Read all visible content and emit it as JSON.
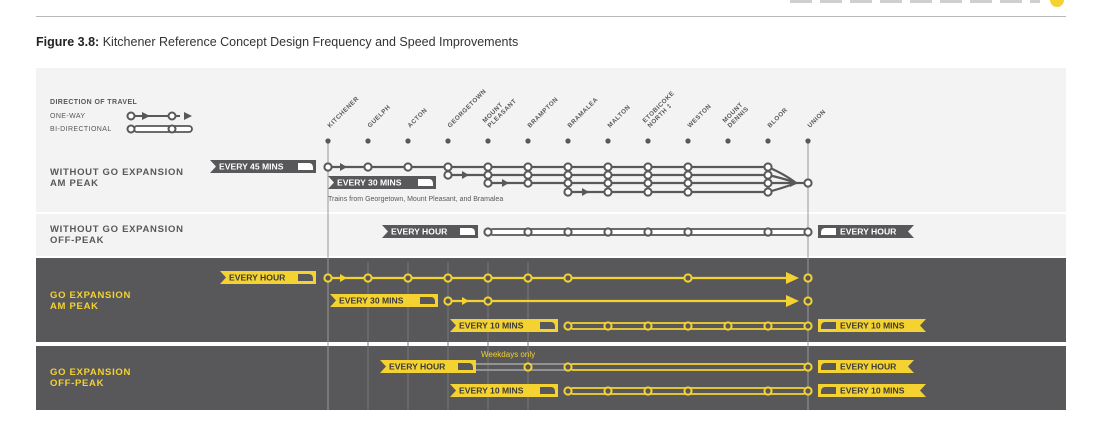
{
  "figure": {
    "label": "Figure 3.8:",
    "caption": "Kitchener Reference Concept Design Frequency and Speed Improvements"
  },
  "legend": {
    "title": "DIRECTION OF TRAVEL",
    "one_way": "ONE-WAY",
    "bi_directional": "BI-DIRECTIONAL"
  },
  "stations": [
    {
      "line1": "KITCHENER"
    },
    {
      "line1": "GUELPH"
    },
    {
      "line1": "ACTON"
    },
    {
      "line1": "GEORGETOWN"
    },
    {
      "line1": "MOUNT",
      "line2": "PLEASANT"
    },
    {
      "line1": "BRAMPTON"
    },
    {
      "line1": "BRAMALEA"
    },
    {
      "line1": "MALTON"
    },
    {
      "line1": "ETOBICOKE",
      "line2": "NORTH ‡"
    },
    {
      "line1": "WESTON"
    },
    {
      "line1": "MOUNT",
      "line2": "DENNIS"
    },
    {
      "line1": "BLOOR"
    },
    {
      "line1": "UNION"
    }
  ],
  "rows": {
    "without_am": {
      "line1": "WITHOUT GO EXPANSION",
      "line2": "AM PEAK"
    },
    "without_off": {
      "line1": "WITHOUT GO EXPANSION",
      "line2": "OFF-PEAK"
    },
    "go_am": {
      "line1": "GO EXPANSION",
      "line2": "AM PEAK"
    },
    "go_off": {
      "line1": "GO EXPANSION",
      "line2": "OFF-PEAK"
    }
  },
  "services": {
    "every_45": "EVERY 45 MINS",
    "every_30_without": "EVERY 30 MINS",
    "trains_note": "Trains from Georgetown, Mount Pleasant, and Bramalea",
    "every_hour_without_left": "EVERY HOUR",
    "every_hour_without_right": "EVERY HOUR",
    "every_hour_go_am": "EVERY HOUR",
    "every_30_go": "EVERY 30 MINS",
    "every_10_go_am_left": "EVERY 10 MINS",
    "every_10_go_am_right": "EVERY 10 MINS",
    "weekdays_only": "Weekdays only",
    "every_hour_go_off_left": "EVERY HOUR",
    "every_hour_go_off_right": "EVERY HOUR",
    "every_10_go_off_left": "EVERY 10 MINS",
    "every_10_go_off_right": "EVERY 10 MINS"
  },
  "colors": {
    "dark_band": "#58585a",
    "grey": "#58585a",
    "yellow": "#f4d232",
    "light_bg": "#f3f3f3"
  }
}
